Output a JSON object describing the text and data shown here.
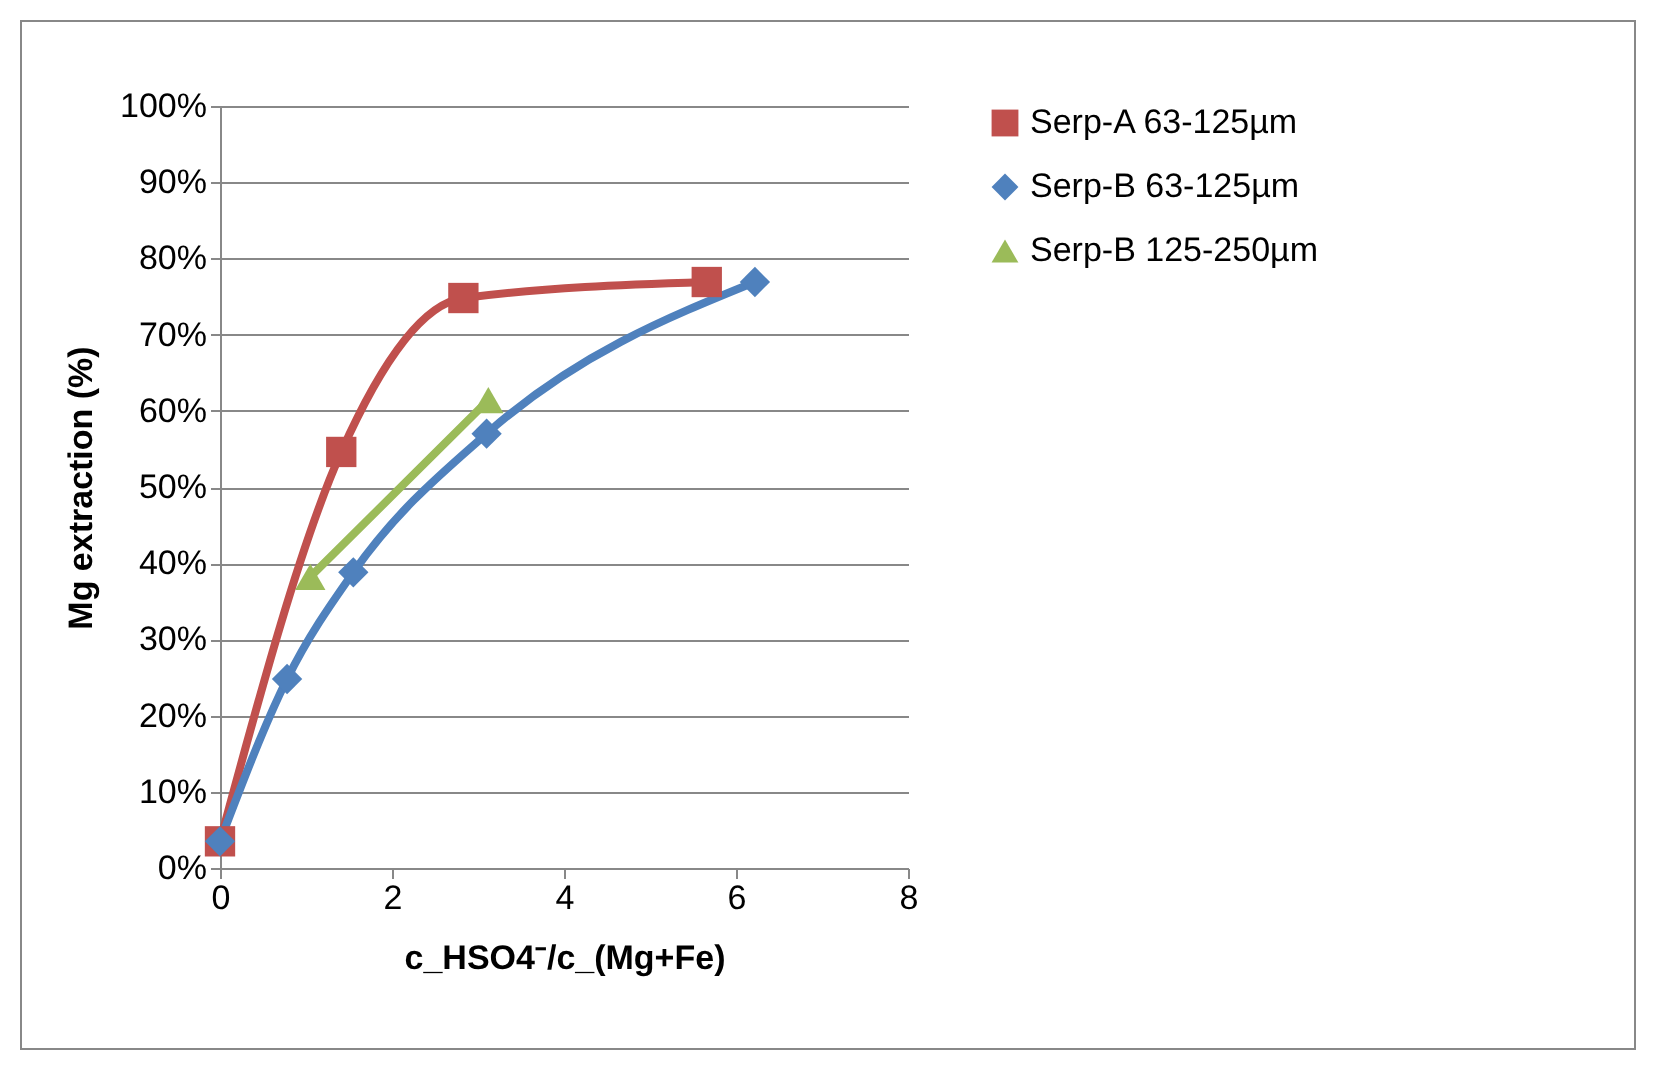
{
  "chart_data": {
    "type": "line",
    "xlabel": "c_HSO4⁻/c_(Mg+Fe)",
    "ylabel": "Mg extraction (%)",
    "xlim": [
      0,
      8
    ],
    "xticks": [
      0,
      2,
      4,
      6,
      8
    ],
    "ylim": [
      0,
      100
    ],
    "yticks": [
      {
        "value": 0,
        "label": "0%"
      },
      {
        "value": 10,
        "label": "10%"
      },
      {
        "value": 20,
        "label": "20%"
      },
      {
        "value": 30,
        "label": "30%"
      },
      {
        "value": 40,
        "label": "40%"
      },
      {
        "value": 50,
        "label": "50%"
      },
      {
        "value": 60,
        "label": "60%"
      },
      {
        "value": 70,
        "label": "70%"
      },
      {
        "value": 80,
        "label": "80%"
      },
      {
        "value": 90,
        "label": "90%"
      },
      {
        "value": 100,
        "label": "100%"
      }
    ],
    "grid": "y",
    "legend": "right",
    "line_style": "solid",
    "series": [
      {
        "name": "Serp-A 63-125µm",
        "color": "#c0504d",
        "marker": "square",
        "x": [
          0,
          1.41,
          2.83,
          5.66
        ],
        "values": [
          3.5,
          54.6,
          74.8,
          76.9
        ]
      },
      {
        "name": "Serp-B 63-125µm",
        "color": "#4f81bd",
        "marker": "diamond",
        "x": [
          0,
          0.78,
          1.55,
          3.1,
          6.22
        ],
        "values": [
          3.5,
          24.8,
          38.8,
          57.0,
          76.9
        ]
      },
      {
        "name": "Serp-B 125-250µm",
        "color": "#9bbb59",
        "marker": "triangle",
        "x": [
          1.05,
          3.12
        ],
        "values": [
          38.2,
          61.4
        ]
      }
    ]
  }
}
